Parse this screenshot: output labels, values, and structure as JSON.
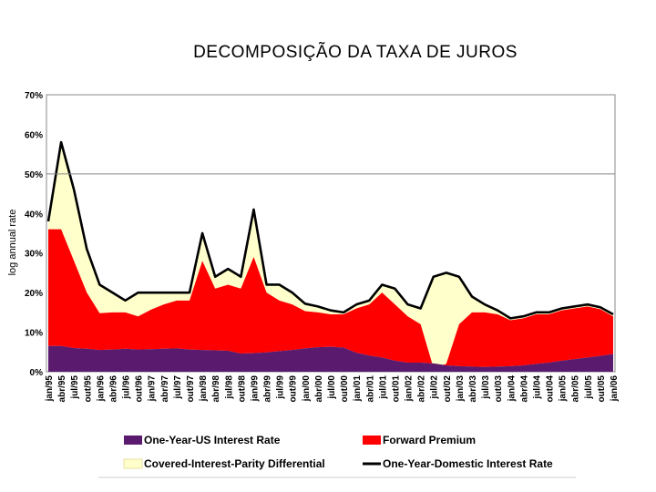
{
  "title": "DECOMPOSIÇÃO DA TAXA DE JUROS",
  "chart_data": {
    "type": "area",
    "ylabel": "log annual rate",
    "ylim": [
      0,
      70
    ],
    "y_ticks": [
      "0%",
      "10%",
      "20%",
      "30%",
      "40%",
      "50%",
      "60%",
      "70%"
    ],
    "reference_line": 50,
    "categories": [
      "jan/95",
      "abr/95",
      "jul/95",
      "out/95",
      "jan/96",
      "abr/96",
      "jul/96",
      "out/96",
      "jan/97",
      "abr/97",
      "jul/97",
      "out/97",
      "jan/98",
      "abr/98",
      "jul/98",
      "out/98",
      "jan/99",
      "abr/99",
      "jul/99",
      "out/99",
      "jan/00",
      "abr/00",
      "jul/00",
      "out/00",
      "jan/01",
      "abr/01",
      "jul/01",
      "out/01",
      "jan/02",
      "abr/02",
      "jul/02",
      "out/02",
      "jan/03",
      "abr/03",
      "jul/03",
      "out/03",
      "jan/04",
      "abr/04",
      "jul/04",
      "out/04",
      "jan/05",
      "abr/05",
      "jul/05",
      "out/05",
      "jan/06"
    ],
    "series": [
      {
        "name": "One-Year-US Interest Rate",
        "color": "#5a1a6e",
        "values": [
          6.5,
          6.5,
          6.0,
          5.8,
          5.5,
          5.6,
          5.8,
          5.6,
          5.7,
          5.8,
          5.9,
          5.6,
          5.5,
          5.4,
          5.3,
          4.6,
          4.7,
          4.9,
          5.2,
          5.5,
          5.9,
          6.2,
          6.3,
          6.1,
          4.8,
          4.1,
          3.6,
          2.8,
          2.3,
          2.3,
          2.1,
          1.6,
          1.4,
          1.3,
          1.2,
          1.3,
          1.4,
          1.6,
          2.0,
          2.3,
          2.8,
          3.2,
          3.6,
          4.0,
          4.5
        ]
      },
      {
        "name": "Forward Premium",
        "color": "#ff0000",
        "values": [
          29.5,
          29.5,
          22.0,
          14.2,
          9.3,
          9.4,
          9.2,
          8.4,
          10.0,
          11.2,
          12.1,
          12.4,
          22.5,
          15.6,
          16.7,
          16.4,
          24.3,
          15.1,
          12.8,
          11.5,
          9.4,
          8.8,
          8.2,
          8.4,
          11.2,
          12.9,
          16.4,
          14.2,
          11.7,
          9.7,
          -1.1,
          0.4,
          10.6,
          13.7,
          13.8,
          13.2,
          11.6,
          11.9,
          12.5,
          12.2,
          12.7,
          12.8,
          12.9,
          11.8,
          9.5
        ]
      },
      {
        "name": "Covered-Interest-Parity Differential",
        "color": "#ffffcc",
        "values": [
          2.0,
          22.0,
          18.0,
          11.0,
          7.2,
          5.0,
          3.0,
          6.0,
          4.3,
          3.0,
          2.0,
          2.0,
          7.0,
          3.0,
          4.0,
          3.0,
          12.0,
          2.0,
          4.0,
          3.0,
          1.9,
          1.5,
          1.0,
          0.5,
          1.0,
          1.0,
          2.0,
          4.0,
          3.0,
          4.0,
          23.0,
          23.0,
          12.0,
          4.0,
          2.0,
          1.0,
          0.5,
          0.5,
          0.5,
          0.5,
          0.5,
          0.5,
          0.5,
          0.5,
          0.5
        ]
      },
      {
        "name": "One-Year-Domestic Interest Rate",
        "color": "#000000",
        "values": [
          38,
          58,
          46,
          31,
          22,
          20,
          18,
          20,
          20,
          20,
          20,
          20,
          35,
          24,
          26,
          24,
          41,
          22,
          22,
          20,
          17.2,
          16.5,
          15.5,
          15,
          17,
          18,
          22,
          21,
          17,
          16,
          24,
          25,
          24,
          19,
          17,
          15.5,
          13.5,
          14,
          15,
          15,
          16,
          16.5,
          17,
          16.3,
          14.5
        ]
      }
    ]
  }
}
